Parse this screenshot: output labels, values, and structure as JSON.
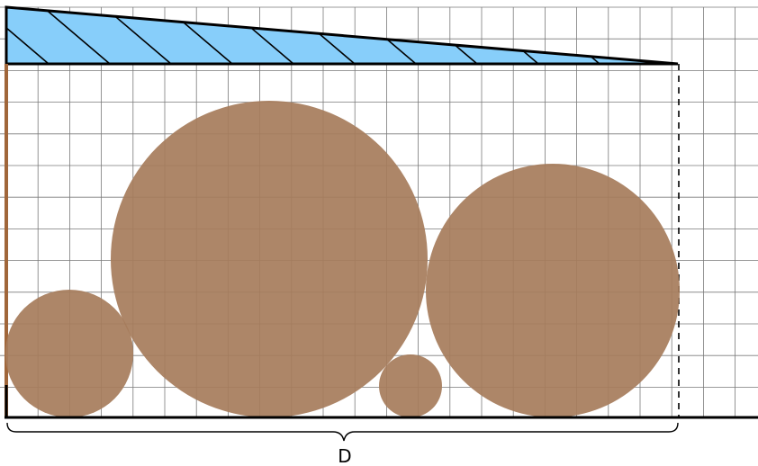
{
  "diagram": {
    "dimension_label": "D",
    "colors": {
      "background": "#ffffff",
      "grid": "#7a7a7a",
      "wedge_fill": "#87cefa",
      "wedge_hatch": "#000000",
      "outline": "#000000",
      "left_wall": "#a0663a",
      "particles": "#a67c5b",
      "dashed_boundary": "#000000"
    },
    "elements": [
      "tapered-wedge",
      "container-bottom",
      "left-wall",
      "right-dashed-boundary",
      "particle-small-left",
      "particle-large-center",
      "particle-tiny",
      "particle-right",
      "dimension-brace",
      "dimension-label"
    ]
  }
}
